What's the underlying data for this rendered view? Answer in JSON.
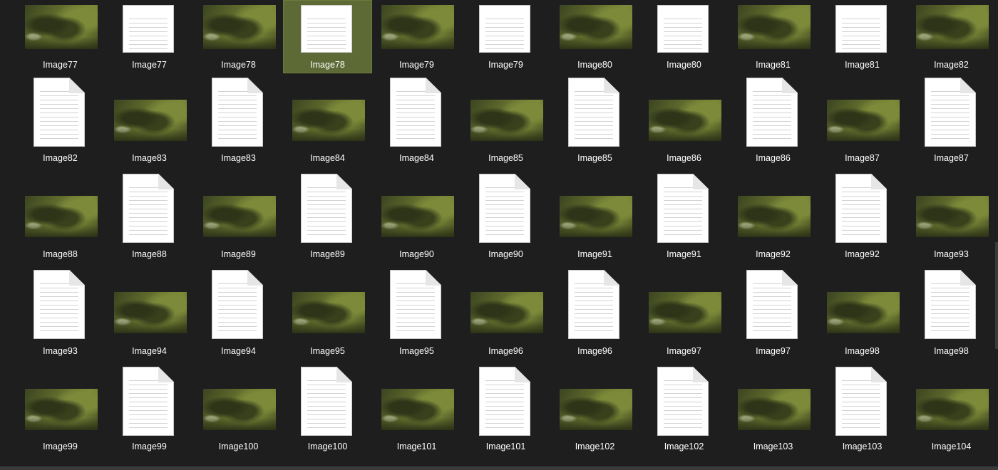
{
  "rows": [
    [
      "Image77",
      "Image77",
      "Image78",
      "Image78",
      "Image79",
      "Image79",
      "Image80",
      "Image80",
      "Image81",
      "Image81",
      "Image82"
    ],
    [
      "Image82",
      "Image83",
      "Image83",
      "Image84",
      "Image84",
      "Image85",
      "Image85",
      "Image86",
      "Image86",
      "Image87",
      "Image87"
    ],
    [
      "Image88",
      "Image88",
      "Image89",
      "Image89",
      "Image90",
      "Image90",
      "Image91",
      "Image91",
      "Image92",
      "Image92",
      "Image93"
    ],
    [
      "Image93",
      "Image94",
      "Image94",
      "Image95",
      "Image95",
      "Image96",
      "Image96",
      "Image97",
      "Image97",
      "Image98",
      "Image98"
    ],
    [
      "Image99",
      "Image99",
      "Image100",
      "Image100",
      "Image101",
      "Image101",
      "Image102",
      "Image102",
      "Image103",
      "Image103",
      "Image104"
    ]
  ],
  "kinds": [
    [
      "image",
      "doc",
      "image",
      "doc",
      "image",
      "doc",
      "image",
      "doc",
      "image",
      "doc",
      "image"
    ],
    [
      "doc",
      "image",
      "doc",
      "image",
      "doc",
      "image",
      "doc",
      "image",
      "doc",
      "image",
      "doc"
    ],
    [
      "image",
      "doc",
      "image",
      "doc",
      "image",
      "doc",
      "image",
      "doc",
      "image",
      "doc",
      "image"
    ],
    [
      "doc",
      "image",
      "doc",
      "image",
      "doc",
      "image",
      "doc",
      "image",
      "doc",
      "image",
      "doc"
    ],
    [
      "image",
      "doc",
      "image",
      "doc",
      "image",
      "doc",
      "image",
      "doc",
      "image",
      "doc",
      "image"
    ]
  ],
  "selected": "0.3",
  "colors": {
    "background": "#1e1e1e",
    "selection": "#5d6a35",
    "text": "#ffffff"
  },
  "icons": {
    "image": "image-thumbnail-icon",
    "doc": "text-document-icon"
  }
}
